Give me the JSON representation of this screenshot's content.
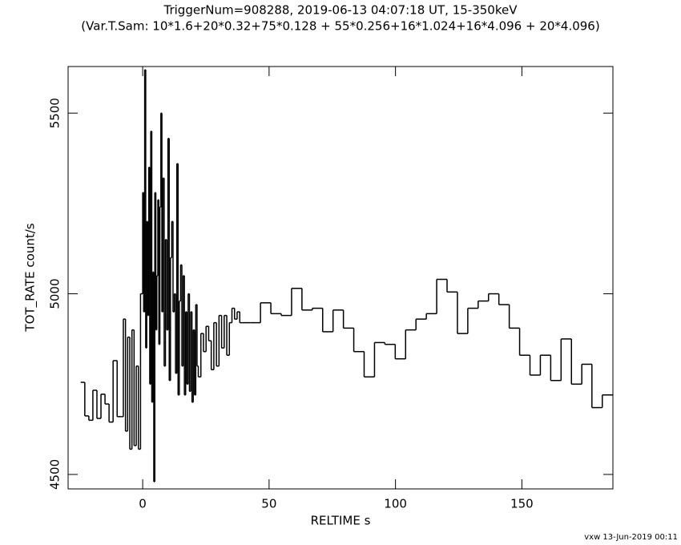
{
  "chart_data": {
    "type": "step",
    "title": "TriggerNum=908288, 2019-06-13 04:07:18 UT, 15-350keV",
    "subtitle": "(Var.T.Sam: 10*1.6+20*0.32+75*0.128  +  55*0.256+16*1.024+16*4.096  +  20*4.096)",
    "x_label": "RELTIME  s",
    "y_label": "TOT_RATE  count/s",
    "footer": "vxw 13-Jun-2019 00:11",
    "color": "#000000",
    "xlim": [
      -29.5,
      186
    ],
    "ylim": [
      4460,
      5629
    ],
    "xticks": [
      0,
      50,
      100,
      150
    ],
    "yticks": [
      4500,
      5000,
      5500
    ],
    "x": [
      -24.5,
      -22.9,
      -21.3,
      -19.7,
      -18.1,
      -16.5,
      -14.9,
      -13.3,
      -11.7,
      -10.1,
      -8.5,
      -7.65,
      -6.8,
      -5.95,
      -5.1,
      -4.25,
      -3.4,
      -2.55,
      -1.7,
      -0.85,
      0,
      0.4,
      0.8,
      1.2,
      1.6,
      2,
      2.4,
      2.8,
      3.2,
      3.6,
      4,
      4.4,
      4.8,
      5.2,
      5.6,
      6,
      6.4,
      6.8,
      7.2,
      7.6,
      8,
      8.5,
      9,
      9.5,
      10,
      10.5,
      11,
      11.5,
      12,
      12.5,
      13,
      13.5,
      14,
      14.5,
      15,
      15.5,
      16,
      16.5,
      17,
      17.5,
      18,
      18.5,
      19,
      19.5,
      20,
      20.5,
      21,
      21.5,
      22,
      23.02,
      24.05,
      25.07,
      26.1,
      27.12,
      28.14,
      29.17,
      30.19,
      31.22,
      32.24,
      33.26,
      34.29,
      35.31,
      36.34,
      37.36,
      38.4,
      42.5,
      46.6,
      50.7,
      54.8,
      58.9,
      63,
      67.1,
      71.2,
      75.3,
      79.4,
      83.5,
      87.6,
      91.7,
      95.8,
      99.9,
      104,
      108.1,
      112.2,
      116.3,
      120.4,
      124.5,
      128.6,
      132.7,
      136.8,
      140.9,
      145,
      149.1,
      153.2,
      157.3,
      161.4,
      165.5,
      169.6,
      173.7,
      177.7,
      181.8
    ],
    "values": [
      4755,
      4662,
      4650,
      4733,
      4655,
      4722,
      4695,
      4645,
      4815,
      4660,
      4660,
      4930,
      4620,
      4880,
      4570,
      4900,
      4580,
      4800,
      4570,
      5000,
      5280,
      4950,
      5620,
      4850,
      5200,
      4940,
      5350,
      4750,
      5450,
      4700,
      5060,
      4480,
      5280,
      4900,
      5050,
      5260,
      4860,
      5240,
      5500,
      4950,
      5320,
      4800,
      5150,
      4900,
      5430,
      4760,
      5100,
      5200,
      4950,
      5000,
      4780,
      5360,
      4720,
      4980,
      5080,
      4800,
      5050,
      4720,
      4950,
      4750,
      5000,
      4730,
      4950,
      4700,
      4900,
      4720,
      4970,
      4800,
      4770,
      4890,
      4840,
      4910,
      4870,
      4790,
      4920,
      4800,
      4940,
      4850,
      4940,
      4830,
      4920,
      4960,
      4930,
      4950,
      4920,
      4920,
      4975,
      4945,
      4940,
      5015,
      4955,
      4960,
      4895,
      4955,
      4905,
      4840,
      4770,
      4865,
      4860,
      4820,
      4900,
      4930,
      4945,
      5040,
      5005,
      4890,
      4960,
      4980,
      5000,
      4970,
      4905,
      4830,
      4775,
      4830,
      4760,
      4875,
      4750,
      4805,
      4685,
      4720
    ]
  }
}
